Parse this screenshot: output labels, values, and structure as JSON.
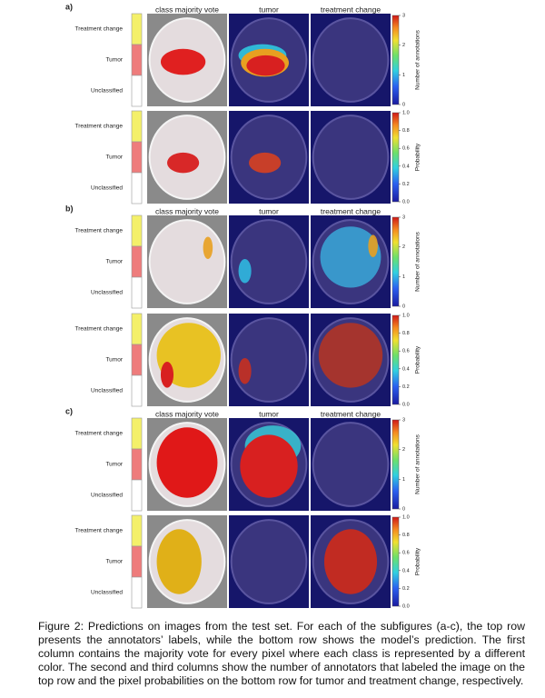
{
  "subfigures": [
    {
      "label": "a)",
      "column_titles": [
        "class majority vote",
        "tumor",
        "treatment change"
      ],
      "rows": [
        {
          "classes": [
            "Treatment change",
            "Tumor",
            "Unclassified"
          ],
          "colorbar": {
            "ticks": [
              "0",
              "1",
              "2",
              "3"
            ],
            "label": "Number of annotations"
          }
        },
        {
          "classes": [
            "Treatment change",
            "Tumor",
            "Unclassified"
          ],
          "colorbar": {
            "ticks": [
              "0.0",
              "0.2",
              "0.4",
              "0.6",
              "0.8",
              "1.0"
            ],
            "label": "Probability"
          }
        }
      ]
    },
    {
      "label": "b)",
      "column_titles": [
        "class majority vote",
        "tumor",
        "treatment change"
      ],
      "rows": [
        {
          "classes": [
            "Treatment change",
            "Tumor",
            "Unclassified"
          ],
          "colorbar": {
            "ticks": [
              "0",
              "1",
              "2",
              "3"
            ],
            "label": "Number of annotations"
          }
        },
        {
          "classes": [
            "Treatment change",
            "Tumor",
            "Unclassified"
          ],
          "colorbar": {
            "ticks": [
              "0.0",
              "0.2",
              "0.4",
              "0.6",
              "0.8",
              "1.0"
            ],
            "label": "Probability"
          }
        }
      ]
    },
    {
      "label": "c)",
      "column_titles": [
        "class majority vote",
        "tumor",
        "treatment change"
      ],
      "rows": [
        {
          "classes": [
            "Treatment change",
            "Tumor",
            "Unclassified"
          ],
          "colorbar": {
            "ticks": [
              "0",
              "1",
              "2",
              "3"
            ],
            "label": "Number of annotations"
          }
        },
        {
          "classes": [
            "Treatment change",
            "Tumor",
            "Unclassified"
          ],
          "colorbar": {
            "ticks": [
              "0.0",
              "0.2",
              "0.4",
              "0.6",
              "0.8",
              "1.0"
            ],
            "label": "Probability"
          }
        }
      ]
    }
  ],
  "caption": "Figure 2: Predictions on images from the test set. For each of the subfigures (a-c), the top row presents the annotators’ labels, while the bottom row shows the model’s prediction. The first column contains the majority vote for every pixel where each class is represented by a different color. The second and third columns show the number of annotators that labeled the image on the top row and the pixel probabilities on the bottom row for tumor and treatment change, respectively."
}
